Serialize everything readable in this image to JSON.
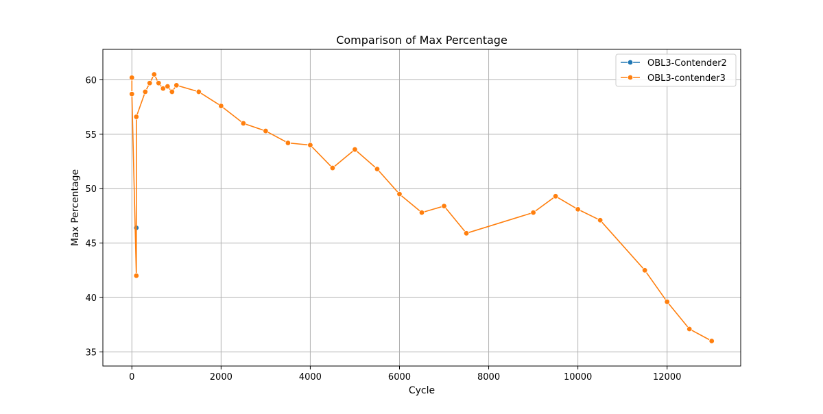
{
  "chart_data": {
    "type": "line",
    "title": "Comparison of Max Percentage",
    "xlabel": "Cycle",
    "ylabel": "Max Percentage",
    "xlim": [
      -650,
      13650
    ],
    "ylim": [
      33.7,
      62.8
    ],
    "xticks": [
      0,
      2000,
      4000,
      6000,
      8000,
      10000,
      12000
    ],
    "yticks": [
      35,
      40,
      45,
      50,
      55,
      60
    ],
    "grid": true,
    "legend_position": "top-right",
    "series": [
      {
        "name": "OBL3-Contender2",
        "color": "#1f77b4",
        "marker": "circle",
        "points": [
          [
            100,
            46.4
          ]
        ]
      },
      {
        "name": "OBL3-contender3",
        "color": "#ff7f0e",
        "marker": "circle",
        "points": [
          [
            0,
            60.2
          ],
          [
            0,
            58.7
          ],
          [
            100,
            42.0
          ],
          [
            100,
            56.6
          ],
          [
            300,
            58.9
          ],
          [
            400,
            59.7
          ],
          [
            500,
            60.5
          ],
          [
            600,
            59.7
          ],
          [
            700,
            59.2
          ],
          [
            800,
            59.4
          ],
          [
            900,
            58.9
          ],
          [
            1000,
            59.5
          ],
          [
            1500,
            58.9
          ],
          [
            2000,
            57.6
          ],
          [
            2500,
            56.0
          ],
          [
            3000,
            55.3
          ],
          [
            3500,
            54.2
          ],
          [
            4000,
            54.0
          ],
          [
            4500,
            51.9
          ],
          [
            5000,
            53.6
          ],
          [
            5500,
            51.8
          ],
          [
            6000,
            49.5
          ],
          [
            6500,
            47.8
          ],
          [
            7000,
            48.4
          ],
          [
            7500,
            45.9
          ],
          [
            9000,
            47.8
          ],
          [
            9500,
            49.3
          ],
          [
            10000,
            48.1
          ],
          [
            10500,
            47.1
          ],
          [
            11500,
            42.5
          ],
          [
            12000,
            39.6
          ],
          [
            12500,
            37.1
          ],
          [
            13000,
            36.0
          ]
        ]
      }
    ]
  }
}
